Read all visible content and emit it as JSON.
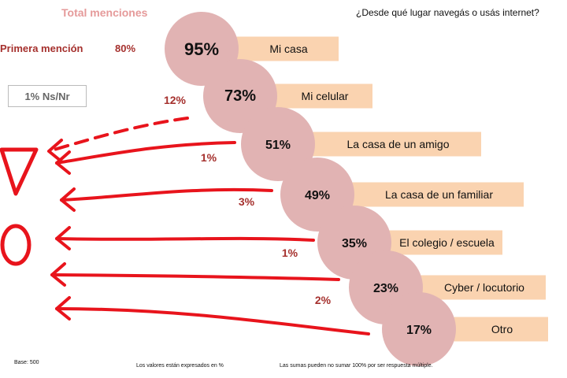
{
  "header": {
    "title": "Total menciones",
    "question": "¿Desde qué lugar navegás o usás internet?",
    "first_mention_label": "Primera mención",
    "first_mention_value": "80%",
    "ns_nr": "1% Ns/Nr"
  },
  "chart_data": {
    "type": "bar",
    "title": "Total menciones",
    "categories": [
      "Mi casa",
      "Mi celular",
      "La casa de un amigo",
      "La casa de un familiar",
      "El colegio / escuela",
      "Cyber / locutorio",
      "Otro"
    ],
    "values": [
      95,
      73,
      51,
      49,
      35,
      23,
      17
    ],
    "value_labels": [
      "95%",
      "73%",
      "51%",
      "49%",
      "35%",
      "23%",
      "17%"
    ],
    "secondary_labels": [
      "12%",
      "1%",
      "3%",
      "1%",
      "2%"
    ],
    "colors": {
      "circle": "#E1B3B3",
      "bar": "#FAD3B0",
      "secondary_text": "#A5302D",
      "annotation": "#E8141C"
    }
  },
  "footer": {
    "base": "Base: 500",
    "values_note": "Los valores están expresados en %",
    "sum_note": "Las sumas pueden no sumar 100% por ser respuesta múltiple."
  }
}
